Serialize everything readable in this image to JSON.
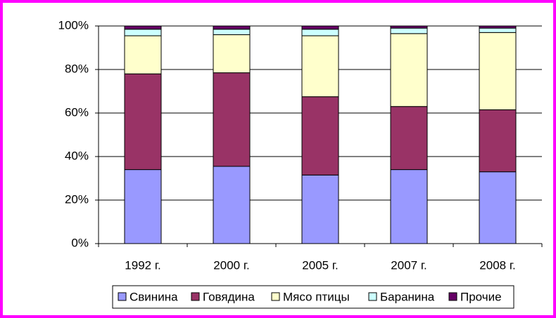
{
  "chart_data": {
    "type": "stacked_bar",
    "categories": [
      "1992 г.",
      "2000 г.",
      "2005 г.",
      "2007 г.",
      "2008 г."
    ],
    "series": [
      {
        "name": "Свинина",
        "color": "#9999ff",
        "values": [
          34,
          35.5,
          31.5,
          34,
          33
        ]
      },
      {
        "name": "Говядина",
        "color": "#993366",
        "values": [
          44,
          43,
          36,
          29,
          28.5
        ]
      },
      {
        "name": "Мясо птицы",
        "color": "#ffffcc",
        "values": [
          17.5,
          17.5,
          28,
          33.5,
          35.5
        ]
      },
      {
        "name": "Баранина",
        "color": "#ccffff",
        "values": [
          3,
          2.5,
          3,
          2.5,
          2
        ]
      },
      {
        "name": "Прочие",
        "color": "#660066",
        "values": [
          1.5,
          1.5,
          1.5,
          1,
          1
        ]
      }
    ],
    "ylim": [
      0,
      100
    ],
    "yticks": [
      {
        "value": 0,
        "label": "0%"
      },
      {
        "value": 20,
        "label": "20%"
      },
      {
        "value": 40,
        "label": "40%"
      },
      {
        "value": 60,
        "label": "60%"
      },
      {
        "value": 80,
        "label": "80%"
      },
      {
        "value": 100,
        "label": "100%"
      }
    ],
    "grid": true,
    "legend": "bottom"
  }
}
